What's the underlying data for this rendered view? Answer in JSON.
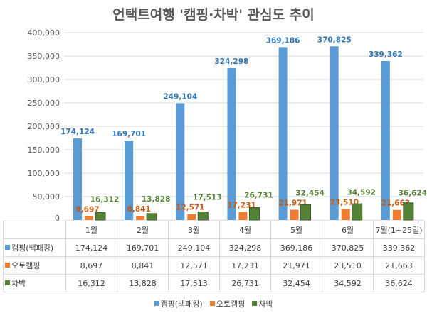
{
  "chart_data": {
    "type": "bar",
    "title": "언택트여행 '캠핑·차박' 관심도 추이",
    "categories": [
      "1월",
      "2월",
      "3월",
      "4월",
      "5월",
      "6월",
      "7월(1~25일)"
    ],
    "ylim": [
      0,
      400000
    ],
    "yticks": [
      "0",
      "50,000",
      "100,000",
      "150,000",
      "200,000",
      "250,000",
      "300,000",
      "350,000",
      "400,000"
    ],
    "grid": true,
    "legend": "bottom",
    "series": [
      {
        "name": "캠핑(백패킹)",
        "color": "#5B9BD5",
        "label_color": "#2E75B6",
        "values": [
          174124,
          169701,
          249104,
          324298,
          369186,
          370825,
          339362
        ],
        "labels": [
          "174,124",
          "169,701",
          "249,104",
          "324,298",
          "369,186",
          "370,825",
          "339,362"
        ]
      },
      {
        "name": "오토캠핑",
        "color": "#ED7D31",
        "label_color": "#C55A11",
        "values": [
          8697,
          8841,
          12571,
          17231,
          21971,
          23510,
          21663
        ],
        "labels": [
          "8,697",
          "8,841",
          "12,571",
          "17,231",
          "21,971",
          "23,510",
          "21,663"
        ]
      },
      {
        "name": "차박",
        "color": "#548235",
        "label_color": "#548235",
        "values": [
          16312,
          13828,
          17513,
          26731,
          32454,
          34592,
          36624
        ],
        "labels": [
          "16,312",
          "13,828",
          "17,513",
          "26,731",
          "32,454",
          "34,592",
          "36,624"
        ]
      }
    ]
  }
}
